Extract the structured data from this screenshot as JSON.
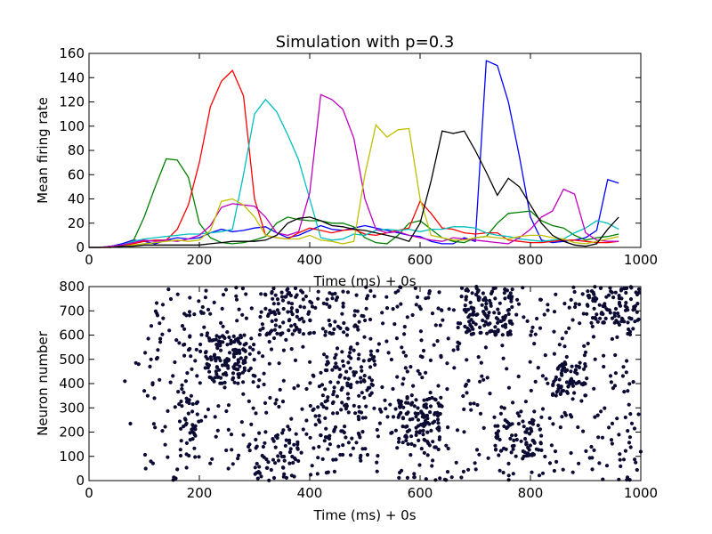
{
  "figure": {
    "title": "Simulation with p=0.3",
    "background": "#ffffff"
  },
  "chart_data": [
    {
      "type": "line",
      "title": "Simulation with p=0.3",
      "xlabel": "Time (ms) + 0s",
      "ylabel": "Mean firing rate",
      "xlim": [
        0,
        1000
      ],
      "ylim": [
        0,
        160
      ],
      "xticks": [
        "0",
        "200",
        "400",
        "600",
        "800",
        "1000"
      ],
      "yticks": [
        "0",
        "20",
        "40",
        "60",
        "80",
        "100",
        "120",
        "140",
        "160"
      ],
      "grid": false,
      "x": [
        0,
        20,
        40,
        60,
        80,
        100,
        120,
        140,
        160,
        180,
        200,
        220,
        240,
        260,
        280,
        300,
        320,
        340,
        360,
        380,
        400,
        420,
        440,
        460,
        480,
        500,
        520,
        540,
        560,
        580,
        600,
        620,
        640,
        660,
        680,
        700,
        720,
        740,
        760,
        780,
        800,
        820,
        840,
        860,
        880,
        900,
        920,
        940,
        960
      ],
      "series": [
        {
          "color": "#0000ff",
          "values": [
            0,
            0,
            1,
            3,
            6,
            5,
            3,
            6,
            8,
            7,
            8,
            12,
            15,
            13,
            14,
            16,
            17,
            12,
            8,
            10,
            14,
            18,
            15,
            14,
            16,
            18,
            16,
            14,
            12,
            10,
            9,
            5,
            3,
            3,
            8,
            5,
            154,
            150,
            120,
            75,
            25,
            6,
            4,
            5,
            6,
            8,
            14,
            56,
            53
          ]
        },
        {
          "color": "#008000",
          "values": [
            0,
            0,
            1,
            2,
            5,
            25,
            50,
            73,
            72,
            58,
            20,
            8,
            4,
            3,
            4,
            6,
            9,
            20,
            25,
            23,
            22,
            22,
            20,
            20,
            17,
            8,
            4,
            3,
            10,
            20,
            22,
            15,
            8,
            5,
            4,
            8,
            9,
            20,
            28,
            29,
            30,
            22,
            18,
            16,
            10,
            6,
            8,
            9,
            11
          ]
        },
        {
          "color": "#ff0000",
          "values": [
            0,
            0,
            0,
            1,
            3,
            5,
            6,
            6,
            15,
            35,
            70,
            116,
            137,
            146,
            125,
            40,
            10,
            8,
            7,
            12,
            16,
            14,
            12,
            14,
            15,
            11,
            10,
            12,
            14,
            16,
            38,
            28,
            16,
            15,
            12,
            11,
            12,
            12,
            6,
            5,
            4,
            4,
            5,
            6,
            6,
            5,
            4,
            4,
            5
          ]
        },
        {
          "color": "#00bfbf",
          "values": [
            0,
            0,
            1,
            2,
            5,
            7,
            8,
            9,
            10,
            11,
            11,
            12,
            13,
            15,
            60,
            110,
            122,
            112,
            93,
            72,
            40,
            8,
            6,
            7,
            11,
            10,
            14,
            15,
            14,
            15,
            13,
            15,
            15,
            17,
            17,
            16,
            12,
            10,
            9,
            7,
            6,
            5,
            6,
            7,
            12,
            16,
            22,
            20,
            15
          ]
        },
        {
          "color": "#bf00bf",
          "values": [
            0,
            0,
            1,
            2,
            4,
            6,
            5,
            6,
            5,
            7,
            10,
            18,
            33,
            36,
            35,
            34,
            25,
            12,
            10,
            13,
            45,
            126,
            122,
            114,
            90,
            40,
            15,
            12,
            13,
            10,
            8,
            6,
            5,
            8,
            7,
            6,
            5,
            4,
            3,
            8,
            15,
            25,
            30,
            48,
            44,
            12,
            6,
            5,
            5
          ]
        },
        {
          "color": "#bfbf00",
          "values": [
            0,
            0,
            0,
            1,
            2,
            3,
            4,
            5,
            6,
            5,
            6,
            14,
            38,
            40,
            35,
            25,
            10,
            8,
            7,
            7,
            10,
            6,
            5,
            3,
            5,
            60,
            101,
            91,
            97,
            98,
            40,
            10,
            8,
            6,
            6,
            8,
            9,
            8,
            7,
            9,
            10,
            10,
            8,
            7,
            4,
            3,
            5,
            7,
            9
          ]
        },
        {
          "color": "#000000",
          "values": [
            0,
            0,
            0,
            1,
            1,
            2,
            2,
            2,
            2,
            2,
            2,
            3,
            4,
            5,
            5,
            5,
            6,
            10,
            20,
            24,
            25,
            22,
            18,
            17,
            15,
            14,
            12,
            10,
            8,
            5,
            20,
            55,
            96,
            94,
            96,
            80,
            62,
            43,
            57,
            50,
            35,
            20,
            10,
            5,
            2,
            1,
            3,
            15,
            25
          ]
        }
      ]
    },
    {
      "type": "scatter",
      "xlabel": "Time (ms) + 0s",
      "ylabel": "Neuron number",
      "xlim": [
        0,
        1000
      ],
      "ylim": [
        0,
        800
      ],
      "xticks": [
        "0",
        "200",
        "400",
        "600",
        "800",
        "1000"
      ],
      "yticks": [
        "0",
        "100",
        "200",
        "300",
        "400",
        "500",
        "600",
        "700",
        "800"
      ],
      "grid": false,
      "marker_color": "#0b0b33",
      "spike_count": 1600,
      "clusters": [
        {
          "t": [
            160,
            200
          ],
          "neuron": [
            150,
            350
          ],
          "count": 30
        },
        {
          "t": [
            210,
            300
          ],
          "neuron": [
            400,
            600
          ],
          "count": 120
        },
        {
          "t": [
            300,
            380
          ],
          "neuron": [
            0,
            200
          ],
          "count": 50
        },
        {
          "t": [
            310,
            380
          ],
          "neuron": [
            600,
            800
          ],
          "count": 50
        },
        {
          "t": [
            400,
            500
          ],
          "neuron": [
            100,
            350
          ],
          "count": 60
        },
        {
          "t": [
            420,
            520
          ],
          "neuron": [
            350,
            550
          ],
          "count": 60
        },
        {
          "t": [
            380,
            500
          ],
          "neuron": [
            600,
            800
          ],
          "count": 50
        },
        {
          "t": [
            560,
            640
          ],
          "neuron": [
            150,
            350
          ],
          "count": 100
        },
        {
          "t": [
            680,
            770
          ],
          "neuron": [
            600,
            800
          ],
          "count": 120
        },
        {
          "t": [
            730,
            820
          ],
          "neuron": [
            100,
            250
          ],
          "count": 70
        },
        {
          "t": [
            840,
            900
          ],
          "neuron": [
            350,
            500
          ],
          "count": 60
        },
        {
          "t": [
            900,
            1000
          ],
          "neuron": [
            650,
            800
          ],
          "count": 80
        }
      ]
    }
  ]
}
